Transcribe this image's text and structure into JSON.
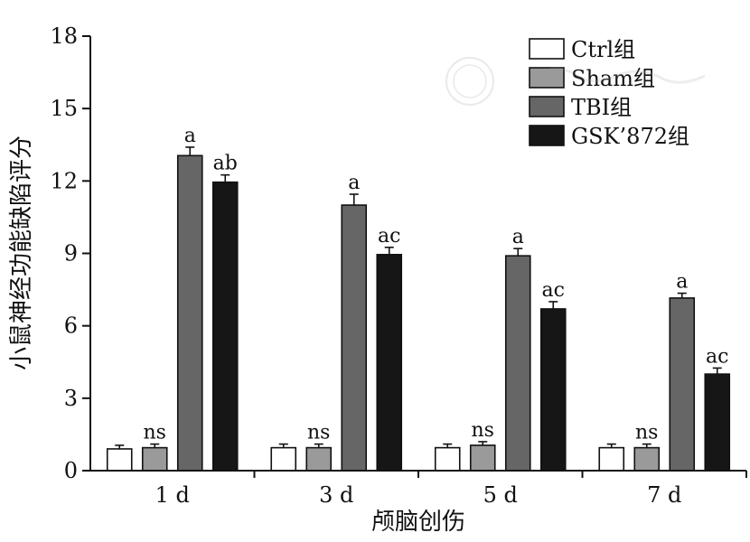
{
  "chart_data": {
    "type": "bar",
    "title": "",
    "xlabel": "颅脑创伤",
    "ylabel": "小鼠神经功能缺陷评分",
    "ylim": [
      0,
      18
    ],
    "yticks": [
      0,
      3,
      6,
      9,
      12,
      15,
      18
    ],
    "categories": [
      "1 d",
      "3 d",
      "5 d",
      "7 d"
    ],
    "legend_position": "top-right",
    "grid": false,
    "series": [
      {
        "name": "Ctrl组",
        "color": "#ffffff",
        "values": [
          0.9,
          0.95,
          0.95,
          0.95
        ],
        "errors": [
          0.15,
          0.15,
          0.15,
          0.15
        ],
        "annotations": [
          "",
          "",
          "",
          ""
        ]
      },
      {
        "name": "Sham组",
        "color": "#9a9a9a",
        "values": [
          0.95,
          0.95,
          1.05,
          0.95
        ],
        "errors": [
          0.15,
          0.15,
          0.15,
          0.15
        ],
        "annotations": [
          "ns",
          "ns",
          "ns",
          "ns"
        ]
      },
      {
        "name": "TBI组",
        "color": "#666666",
        "values": [
          13.05,
          11.0,
          8.9,
          7.15
        ],
        "errors": [
          0.35,
          0.45,
          0.3,
          0.2
        ],
        "annotations": [
          "a",
          "a",
          "a",
          "a"
        ]
      },
      {
        "name": "GSK’872组",
        "color": "#161616",
        "values": [
          11.95,
          8.95,
          6.7,
          4.0
        ],
        "errors": [
          0.3,
          0.3,
          0.3,
          0.25
        ],
        "annotations": [
          "ab",
          "ac",
          "ac",
          "ac"
        ]
      }
    ]
  }
}
